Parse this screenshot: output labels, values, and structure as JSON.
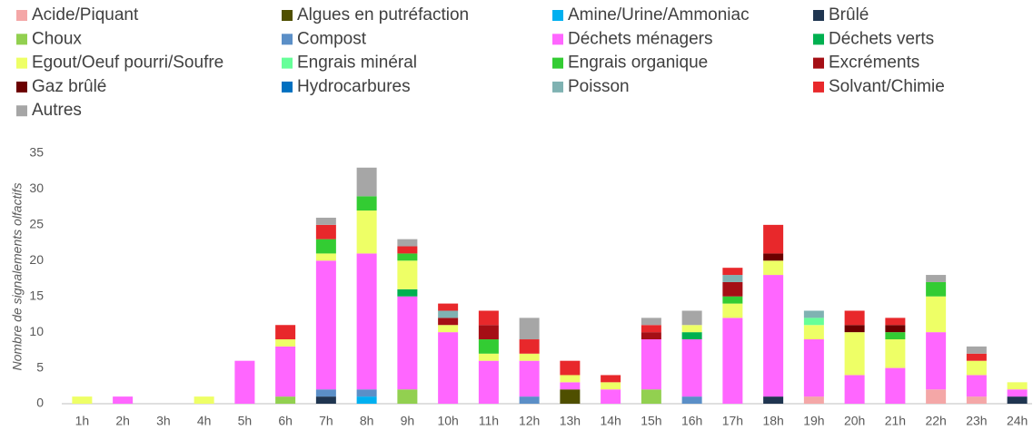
{
  "chart_data": {
    "type": "stacked_bar",
    "ylabel": "Nombre de signalements olfactifs",
    "categories": [
      "1h",
      "2h",
      "3h",
      "4h",
      "5h",
      "6h",
      "7h",
      "8h",
      "9h",
      "10h",
      "11h",
      "12h",
      "13h",
      "14h",
      "15h",
      "16h",
      "17h",
      "18h",
      "19h",
      "20h",
      "21h",
      "22h",
      "23h",
      "24h"
    ],
    "ylim": [
      0,
      35
    ],
    "yticks": [
      0,
      5,
      10,
      15,
      20,
      25,
      30,
      35
    ],
    "grid": false,
    "series": [
      {
        "name": "Acide/Piquant",
        "color": "#f4a7a7",
        "values": [
          0,
          0,
          0,
          0,
          0,
          0,
          0,
          0,
          0,
          0,
          0,
          0,
          0,
          0,
          0,
          0,
          0,
          0,
          1,
          0,
          0,
          2,
          1,
          0
        ]
      },
      {
        "name": "Algues en putréfaction",
        "color": "#4f4f00",
        "values": [
          0,
          0,
          0,
          0,
          0,
          0,
          0,
          0,
          0,
          0,
          0,
          0,
          2,
          0,
          0,
          0,
          0,
          0,
          0,
          0,
          0,
          0,
          0,
          0
        ]
      },
      {
        "name": "Amine/Urine/Ammoniac",
        "color": "#00b0f0",
        "values": [
          0,
          0,
          0,
          0,
          0,
          0,
          0,
          1,
          0,
          0,
          0,
          0,
          0,
          0,
          0,
          0,
          0,
          0,
          0,
          0,
          0,
          0,
          0,
          0
        ]
      },
      {
        "name": "Brûlé",
        "color": "#1f3550",
        "values": [
          0,
          0,
          0,
          0,
          0,
          0,
          1,
          0,
          0,
          0,
          0,
          0,
          0,
          0,
          0,
          0,
          0,
          1,
          0,
          0,
          0,
          0,
          0,
          1
        ]
      },
      {
        "name": "Choux",
        "color": "#92d050",
        "values": [
          0,
          0,
          0,
          0,
          0,
          1,
          0,
          0,
          2,
          0,
          0,
          0,
          0,
          0,
          2,
          0,
          0,
          0,
          0,
          0,
          0,
          0,
          0,
          0
        ]
      },
      {
        "name": "Compost",
        "color": "#5b8fc7",
        "values": [
          0,
          0,
          0,
          0,
          0,
          0,
          1,
          1,
          0,
          0,
          0,
          1,
          0,
          0,
          0,
          1,
          0,
          0,
          0,
          0,
          0,
          0,
          0,
          0
        ]
      },
      {
        "name": "Déchets ménagers",
        "color": "#ff66ff",
        "values": [
          0,
          1,
          0,
          0,
          6,
          7,
          18,
          19,
          13,
          10,
          6,
          5,
          1,
          2,
          7,
          8,
          12,
          17,
          8,
          4,
          5,
          8,
          3,
          1
        ]
      },
      {
        "name": "Déchets verts",
        "color": "#00b050",
        "values": [
          0,
          0,
          0,
          0,
          0,
          0,
          0,
          0,
          1,
          0,
          0,
          0,
          0,
          0,
          0,
          1,
          0,
          0,
          0,
          0,
          0,
          0,
          0,
          0
        ]
      },
      {
        "name": "Egout/Oeuf pourri/Soufre",
        "color": "#eeff66",
        "values": [
          1,
          0,
          0,
          1,
          0,
          1,
          1,
          6,
          4,
          1,
          1,
          1,
          1,
          1,
          0,
          1,
          2,
          2,
          2,
          6,
          4,
          5,
          2,
          1
        ]
      },
      {
        "name": "Engrais minéral",
        "color": "#66ff99",
        "values": [
          0,
          0,
          0,
          0,
          0,
          0,
          0,
          0,
          0,
          0,
          0,
          0,
          0,
          0,
          0,
          0,
          0,
          0,
          1,
          0,
          0,
          0,
          0,
          0
        ]
      },
      {
        "name": "Engrais organique",
        "color": "#33cc33",
        "values": [
          0,
          0,
          0,
          0,
          0,
          0,
          2,
          2,
          1,
          0,
          2,
          0,
          0,
          0,
          0,
          0,
          1,
          0,
          0,
          0,
          1,
          2,
          0,
          0
        ]
      },
      {
        "name": "Excréments",
        "color": "#a50f15",
        "values": [
          0,
          0,
          0,
          0,
          0,
          0,
          0,
          0,
          0,
          1,
          2,
          0,
          0,
          0,
          1,
          0,
          2,
          0,
          0,
          0,
          0,
          0,
          0,
          0
        ]
      },
      {
        "name": "Gaz brûlé",
        "color": "#6b0000",
        "values": [
          0,
          0,
          0,
          0,
          0,
          0,
          0,
          0,
          0,
          0,
          0,
          0,
          0,
          0,
          0,
          0,
          0,
          1,
          0,
          1,
          1,
          0,
          0,
          0
        ]
      },
      {
        "name": "Hydrocarbures",
        "color": "#0070c0",
        "values": [
          0,
          0,
          0,
          0,
          0,
          0,
          0,
          0,
          0,
          0,
          0,
          0,
          0,
          0,
          0,
          0,
          0,
          0,
          0,
          0,
          0,
          0,
          0,
          0
        ]
      },
      {
        "name": "Poisson",
        "color": "#7fb2b2",
        "values": [
          0,
          0,
          0,
          0,
          0,
          0,
          0,
          0,
          0,
          1,
          0,
          0,
          0,
          0,
          0,
          0,
          1,
          0,
          1,
          0,
          0,
          0,
          0,
          0
        ]
      },
      {
        "name": "Solvant/Chimie",
        "color": "#e8282b",
        "values": [
          0,
          0,
          0,
          0,
          0,
          2,
          2,
          0,
          1,
          1,
          2,
          2,
          2,
          1,
          1,
          0,
          1,
          4,
          0,
          2,
          1,
          0,
          1,
          0
        ]
      },
      {
        "name": "Autres",
        "color": "#a6a6a6",
        "values": [
          0,
          0,
          0,
          0,
          0,
          0,
          1,
          4,
          1,
          0,
          0,
          3,
          0,
          0,
          1,
          2,
          0,
          0,
          0,
          0,
          0,
          1,
          1,
          0
        ]
      }
    ]
  }
}
